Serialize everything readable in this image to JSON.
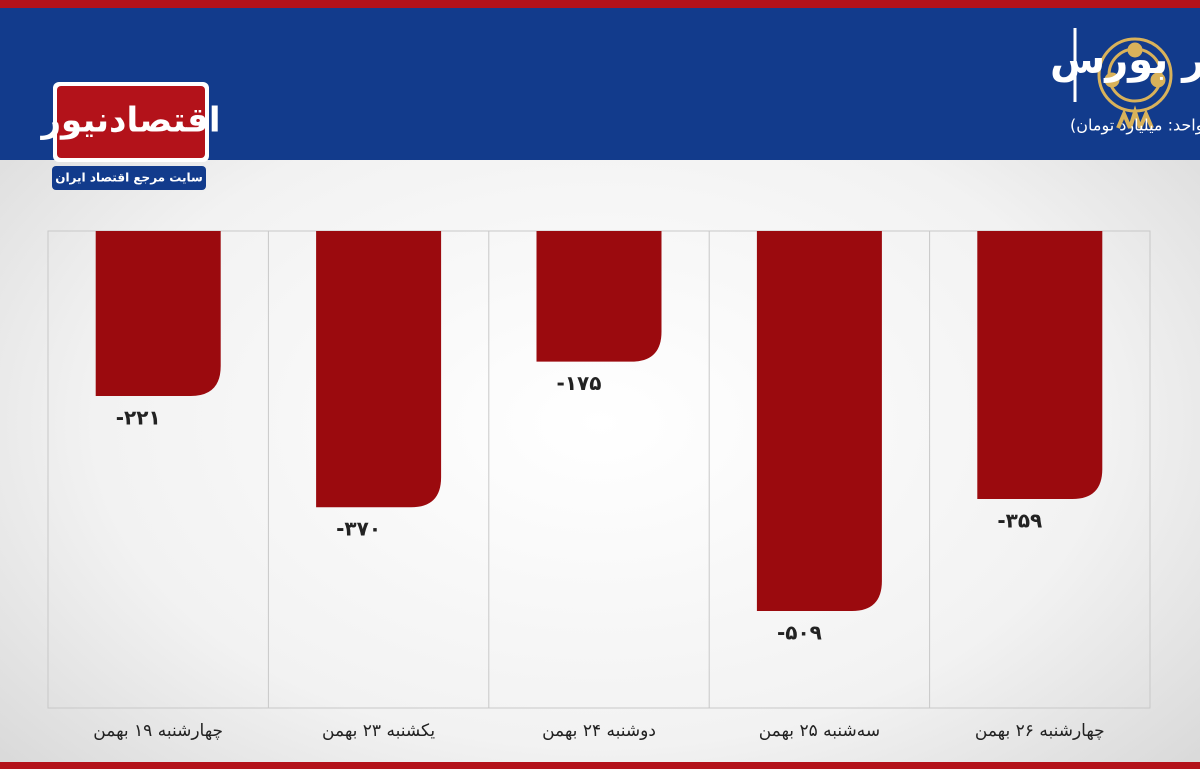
{
  "chart_data": {
    "type": "bar",
    "title": "روند ورود و خروج پول حقیقی در بورس",
    "subtitle": "(واحد: میلیارد تومان)",
    "categories": [
      "چهارشنبه ۱۹ بهمن",
      "یکشنبه ۲۳ بهمن",
      "دوشنبه ۲۴ بهمن",
      "سه‌شنبه ۲۵ بهمن",
      "چهارشنبه ۲۶ بهمن"
    ],
    "values": [
      -221,
      -370,
      -175,
      -509,
      -359
    ],
    "value_labels": [
      "-۲۲۱",
      "-۳۷۰",
      "-۱۷۵",
      "-۵۰۹",
      "-۳۵۹"
    ],
    "color": "#9b0a0e"
  },
  "logo": {
    "name": "اقتصادنیوز",
    "tagline": "سایت مرجع اقتصاد ایران"
  }
}
